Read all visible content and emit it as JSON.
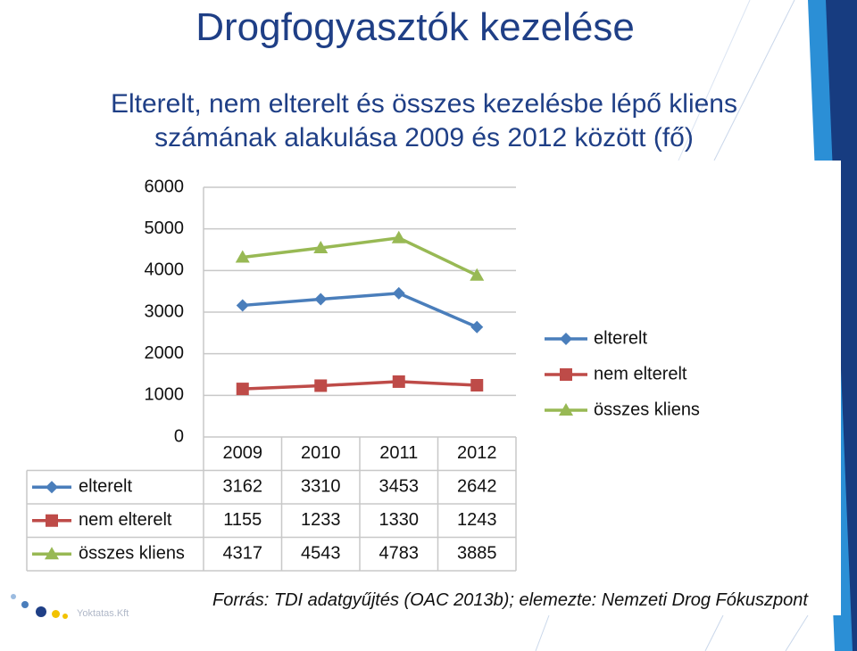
{
  "slide": {
    "title": "Drogfogyasztók kezelése",
    "subtitle_line1": "Elterelt, nem elterelt és összes kezelésbe lépő kliens",
    "subtitle_line2": "számának alakulása 2009 és 2012 között (fő)",
    "source": "Forrás: TDI adatgyűjtés (OAC 2013b); elemezte: Nemzeti Drog Fókuszpont",
    "logo_text": "Yoktatas.Kft",
    "colors": {
      "title": "#1f3f86",
      "accent_blue": "#2b8fd6",
      "accent_navy": "#173c80"
    }
  },
  "chart_data": {
    "type": "line",
    "categories": [
      "2009",
      "2010",
      "2011",
      "2012"
    ],
    "ylim": [
      0,
      6000
    ],
    "yticks": [
      0,
      1000,
      2000,
      3000,
      4000,
      5000,
      6000
    ],
    "grid": true,
    "legend_position": "right",
    "data_table": true,
    "series": [
      {
        "name": "elterelt",
        "values": [
          3162,
          3310,
          3453,
          2642
        ],
        "color": "#4a7ebb",
        "marker": "diamond"
      },
      {
        "name": "nem elterelt",
        "values": [
          1155,
          1233,
          1330,
          1243
        ],
        "color": "#be4b48",
        "marker": "square"
      },
      {
        "name": "összes kliens",
        "values": [
          4317,
          4543,
          4783,
          3885
        ],
        "color": "#98b954",
        "marker": "triangle"
      }
    ]
  }
}
